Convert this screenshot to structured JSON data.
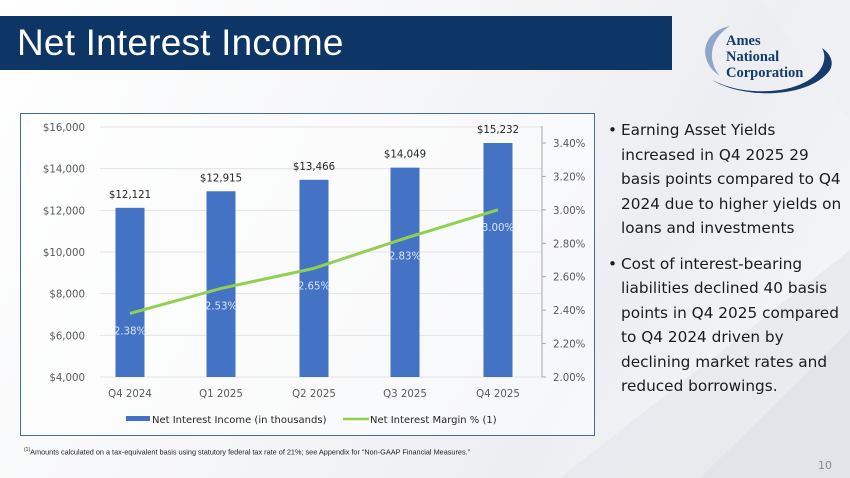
{
  "header": {
    "title": "Net Interest Income",
    "logo": {
      "line1": "Ames",
      "line2": "National",
      "line3": "Corporation"
    }
  },
  "colors": {
    "title_bar": "#0d3566",
    "bar": "#4472c4",
    "line": "#92d050",
    "chart_border": "#3f6ea8",
    "logo_navy": "#163a6b",
    "logo_light": "#8fa6c6"
  },
  "chart_data": {
    "type": "bar",
    "title": "",
    "categories": [
      "Q4 2024",
      "Q1 2025",
      "Q2 2025",
      "Q3 2025",
      "Q4 2025"
    ],
    "series": [
      {
        "name": "Net Interest Income (in thousands)",
        "type": "bar",
        "axis": "left",
        "values": [
          12121,
          12915,
          13466,
          14049,
          15232
        ],
        "labels": [
          "$12,121",
          "$12,915",
          "$13,466",
          "$14,049",
          "$15,232"
        ]
      },
      {
        "name": "Net Interest Margin % (1)",
        "type": "line",
        "axis": "right",
        "values": [
          2.38,
          2.53,
          2.65,
          2.83,
          3.0
        ],
        "labels": [
          "2.38%",
          "2.53%",
          "2.65%",
          "2.83%",
          "3.00%"
        ]
      }
    ],
    "left_axis": {
      "ylim": [
        4000,
        16000
      ],
      "ticks": [
        "$16,000",
        "$14,000",
        "$12,000",
        "$10,000",
        "$8,000",
        "$6,000",
        "$4,000"
      ]
    },
    "right_axis": {
      "ylim": [
        2.0,
        3.4
      ],
      "ticks": [
        "3.40%",
        "3.20%",
        "3.00%",
        "2.80%",
        "2.60%",
        "2.40%",
        "2.20%",
        "2.00%"
      ]
    },
    "xlabel": "",
    "ylabel": "",
    "grid": true,
    "legend_position": "bottom",
    "legend": [
      "Net Interest Income (in thousands)",
      "Net Interest Margin % (1)"
    ]
  },
  "bullets": [
    {
      "text": "Earning Asset Yields increased in Q4 2025 29 basis points compared to Q4 2024 due to higher yields on loans and investments"
    },
    {
      "text": "Cost of interest-bearing liabilities declined 40 basis points in Q4 2025 compared to Q4 2024 driven by declining market rates and reduced borrowings."
    }
  ],
  "footnote": {
    "marker": "(1)",
    "text": "Amounts calculated on a tax-equivalent basis using statutory federal tax rate of 21%; see Appendix for “Non-GAAP Financial Measures.”"
  },
  "page_number": "10"
}
